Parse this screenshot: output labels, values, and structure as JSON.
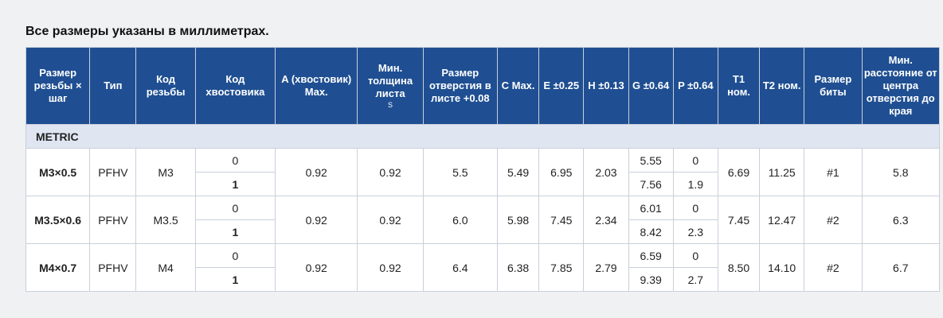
{
  "title": "Все размеры указаны в миллиметрах.",
  "headers": {
    "thread": "Размер резьбы × шаг",
    "type": "Тип",
    "thread_code": "Код резьбы",
    "shank_code": "Код хвостовика",
    "a": "A (хвостовик) Max.",
    "min_sheet": "Мин. толщина листа",
    "min_sheet_sub": "S",
    "hole": "Размер отверстия в листе +0.08",
    "c": "C Max.",
    "e": "E ±0.25",
    "h": "H ±0.13",
    "g": "G ±0.64",
    "p": "P ±0.64",
    "t1": "T1 ном.",
    "t2": "T2 ном.",
    "bit": "Размер биты",
    "min_dist": "Мин. расстояние от центра отверстия до края"
  },
  "section": "METRIC",
  "rows": [
    {
      "thread": "M3×0.5",
      "type": "PFHV",
      "code": "M3",
      "shank_0": "0",
      "shank_1": "1",
      "a": "0.92",
      "s": "0.92",
      "hole": "5.5",
      "c": "5.49",
      "e": "6.95",
      "h": "2.03",
      "g_0": "5.55",
      "g_1": "7.56",
      "p_0": "0",
      "p_1": "1.9",
      "t1": "6.69",
      "t2": "11.25",
      "bit": "#1",
      "dist": "5.8"
    },
    {
      "thread": "M3.5×0.6",
      "type": "PFHV",
      "code": "M3.5",
      "shank_0": "0",
      "shank_1": "1",
      "a": "0.92",
      "s": "0.92",
      "hole": "6.0",
      "c": "5.98",
      "e": "7.45",
      "h": "2.34",
      "g_0": "6.01",
      "g_1": "8.42",
      "p_0": "0",
      "p_1": "2.3",
      "t1": "7.45",
      "t2": "12.47",
      "bit": "#2",
      "dist": "6.3"
    },
    {
      "thread": "M4×0.7",
      "type": "PFHV",
      "code": "M4",
      "shank_0": "0",
      "shank_1": "1",
      "a": "0.92",
      "s": "0.92",
      "hole": "6.4",
      "c": "6.38",
      "e": "7.85",
      "h": "2.79",
      "g_0": "6.59",
      "g_1": "9.39",
      "p_0": "0",
      "p_1": "2.7",
      "t1": "8.50",
      "t2": "14.10",
      "bit": "#2",
      "dist": "6.7"
    }
  ]
}
